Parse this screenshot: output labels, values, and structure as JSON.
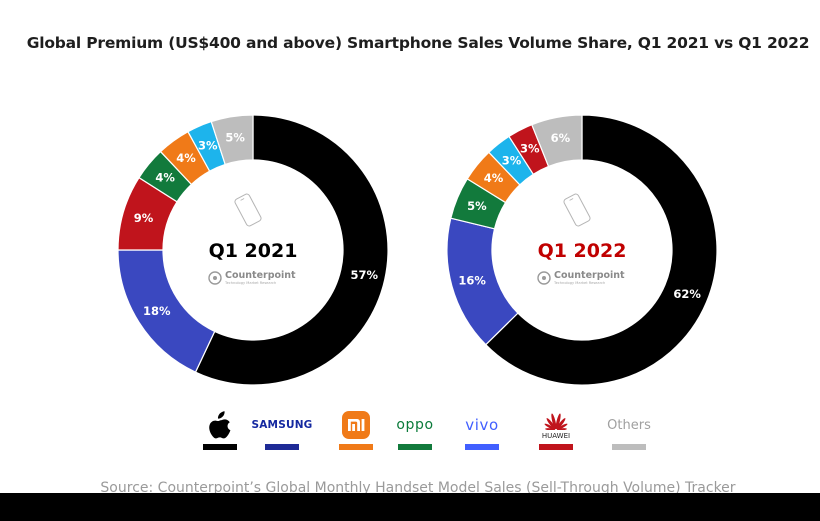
{
  "chart_data": {
    "type": "pie",
    "title": "Global Premium (US$400 and above) Smartphone Sales Volume Share, Q1 2021 vs Q1 2022",
    "legend_position": "bottom",
    "categories": [
      "Apple",
      "Samsung",
      "Xiaomi",
      "OPPO",
      "vivo",
      "Huawei",
      "Others"
    ],
    "colors": [
      "#000000",
      "#3a48c0",
      "#f07a18",
      "#127a3c",
      "#1db4ec",
      "#c0141c",
      "#bdbdbd"
    ],
    "charts": [
      {
        "label": "Q1 2021",
        "label_color": "#000000",
        "slices": [
          {
            "name": "Apple",
            "value": 57,
            "label": "57%",
            "color": "#000000"
          },
          {
            "name": "Samsung",
            "value": 18,
            "label": "18%",
            "color": "#3a48c0"
          },
          {
            "name": "Huawei",
            "value": 9,
            "label": "9%",
            "color": "#c0141c"
          },
          {
            "name": "OPPO",
            "value": 4,
            "label": "4%",
            "color": "#127a3c"
          },
          {
            "name": "Xiaomi",
            "value": 4,
            "label": "4%",
            "color": "#f07a18"
          },
          {
            "name": "vivo",
            "value": 3,
            "label": "3%",
            "color": "#1db4ec"
          },
          {
            "name": "Others",
            "value": 5,
            "label": "5%",
            "color": "#bdbdbd"
          }
        ]
      },
      {
        "label": "Q1 2022",
        "label_color": "#c00000",
        "slices": [
          {
            "name": "Apple",
            "value": 62,
            "label": "62%",
            "color": "#000000"
          },
          {
            "name": "Samsung",
            "value": 16,
            "label": "16%",
            "color": "#3a48c0"
          },
          {
            "name": "OPPO",
            "value": 5,
            "label": "5%",
            "color": "#127a3c"
          },
          {
            "name": "Xiaomi",
            "value": 4,
            "label": "4%",
            "color": "#f07a18"
          },
          {
            "name": "vivo",
            "value": 3,
            "label": "3%",
            "color": "#1db4ec"
          },
          {
            "name": "Huawei",
            "value": 3,
            "label": "3%",
            "color": "#c0141c"
          },
          {
            "name": "Others",
            "value": 6,
            "label": "6%",
            "color": "#bdbdbd"
          }
        ]
      }
    ]
  },
  "watermark": {
    "brand": "Counterpoint",
    "tagline": "Technology Market Research",
    "icon": "phone-outline-icon"
  },
  "legend": {
    "apple": {
      "icon": "apple-logo-icon",
      "color": "#000000"
    },
    "samsung": {
      "text": "SAMSUNG",
      "color": "#1428a0"
    },
    "xiaomi": {
      "text": "mi",
      "icon": "xiaomi-logo-icon",
      "color": "#f07a18"
    },
    "oppo": {
      "text": "oppo",
      "color": "#127a3c"
    },
    "vivo": {
      "text": "vivo",
      "color": "#415fff"
    },
    "huawei": {
      "text": "HUAWEI",
      "icon": "huawei-logo-icon",
      "color": "#c0141c"
    },
    "others": {
      "text": "Others",
      "color": "#bdbdbd"
    }
  },
  "source": "Source: Counterpoint’s Global Monthly Handset Model Sales (Sell-Through Volume) Tracker"
}
